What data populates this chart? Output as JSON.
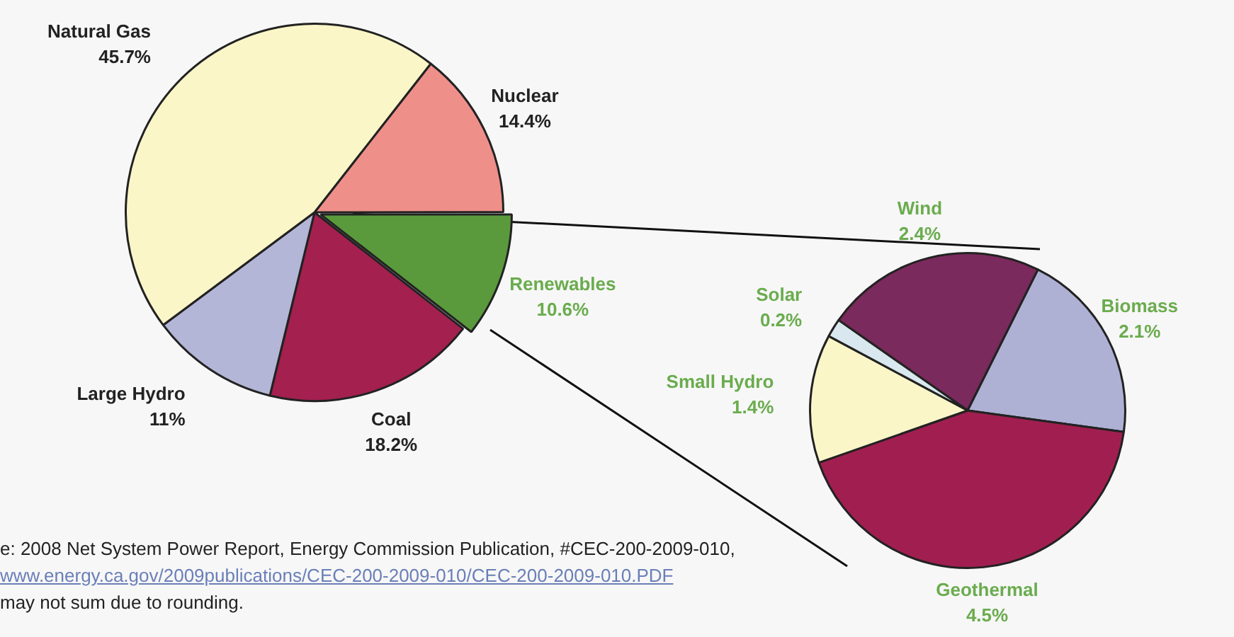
{
  "chart_data": [
    {
      "type": "pie",
      "categories": [
        "Nuclear",
        "Renewables",
        "Coal",
        "Large Hydro",
        "Natural Gas"
      ],
      "values": [
        14.4,
        10.6,
        18.2,
        11,
        45.7
      ],
      "value_labels": [
        "14.4%",
        "10.6%",
        "18.2%",
        "11%",
        "45.7%"
      ],
      "colors": [
        "#ef8f8a",
        "#5a9a3c",
        "#a3204f",
        "#b3b6d6",
        "#fbf6c8"
      ],
      "annotations": [
        "e:  2008 Net System Power Report, Energy Commission Publication, #CEC-200-2009-010,",
        "www.energy.ca.gov/2009publications/CEC-200-2009-010/CEC-200-2009-010.PDF",
        "may not sum due to rounding."
      ]
    },
    {
      "type": "pie",
      "categories": [
        "Wind",
        "Biomass",
        "Geothermal",
        "Small Hydro",
        "Solar"
      ],
      "values": [
        2.4,
        2.1,
        4.5,
        1.4,
        0.2
      ],
      "value_labels": [
        "2.4%",
        "2.1%",
        "4.5%",
        "1.4%",
        "0.2%"
      ],
      "colors": [
        "#7a2a5c",
        "#aeb0d4",
        "#a11f50",
        "#fbf6c8",
        "#d8e8ee"
      ]
    }
  ]
}
